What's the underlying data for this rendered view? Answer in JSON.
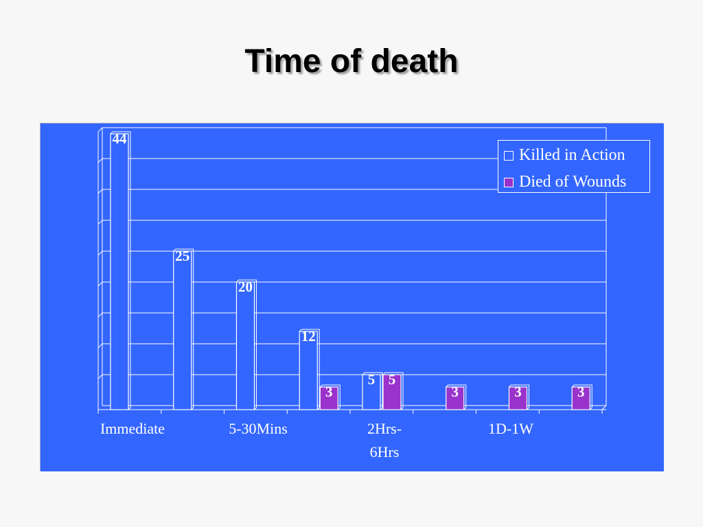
{
  "title": "Time of death",
  "colors": {
    "panel": "#3366ff",
    "killed": "#3366ff",
    "died": "#9933cc",
    "line": "#ffffff"
  },
  "legend": {
    "killed_label": "Killed in Action",
    "died_label": "Died of Wounds"
  },
  "x_tick_labels": [
    "Immediate",
    "5-30Mins",
    "2Hrs-\n6Hrs",
    "1D-1W"
  ],
  "chart_data": {
    "type": "bar",
    "categories": [
      "Immediate",
      "",
      "5-30Mins",
      "",
      "2Hrs-6Hrs",
      "",
      "1D-1W",
      ""
    ],
    "series": [
      {
        "name": "Killed in Action",
        "values": [
          44,
          25,
          20,
          12,
          5,
          0,
          0,
          0
        ]
      },
      {
        "name": "Died of Wounds",
        "values": [
          0,
          0,
          0,
          3,
          5,
          3,
          3,
          3
        ]
      }
    ],
    "ylim": [
      0,
      45
    ],
    "grid": true,
    "legend_position": "top-right"
  }
}
